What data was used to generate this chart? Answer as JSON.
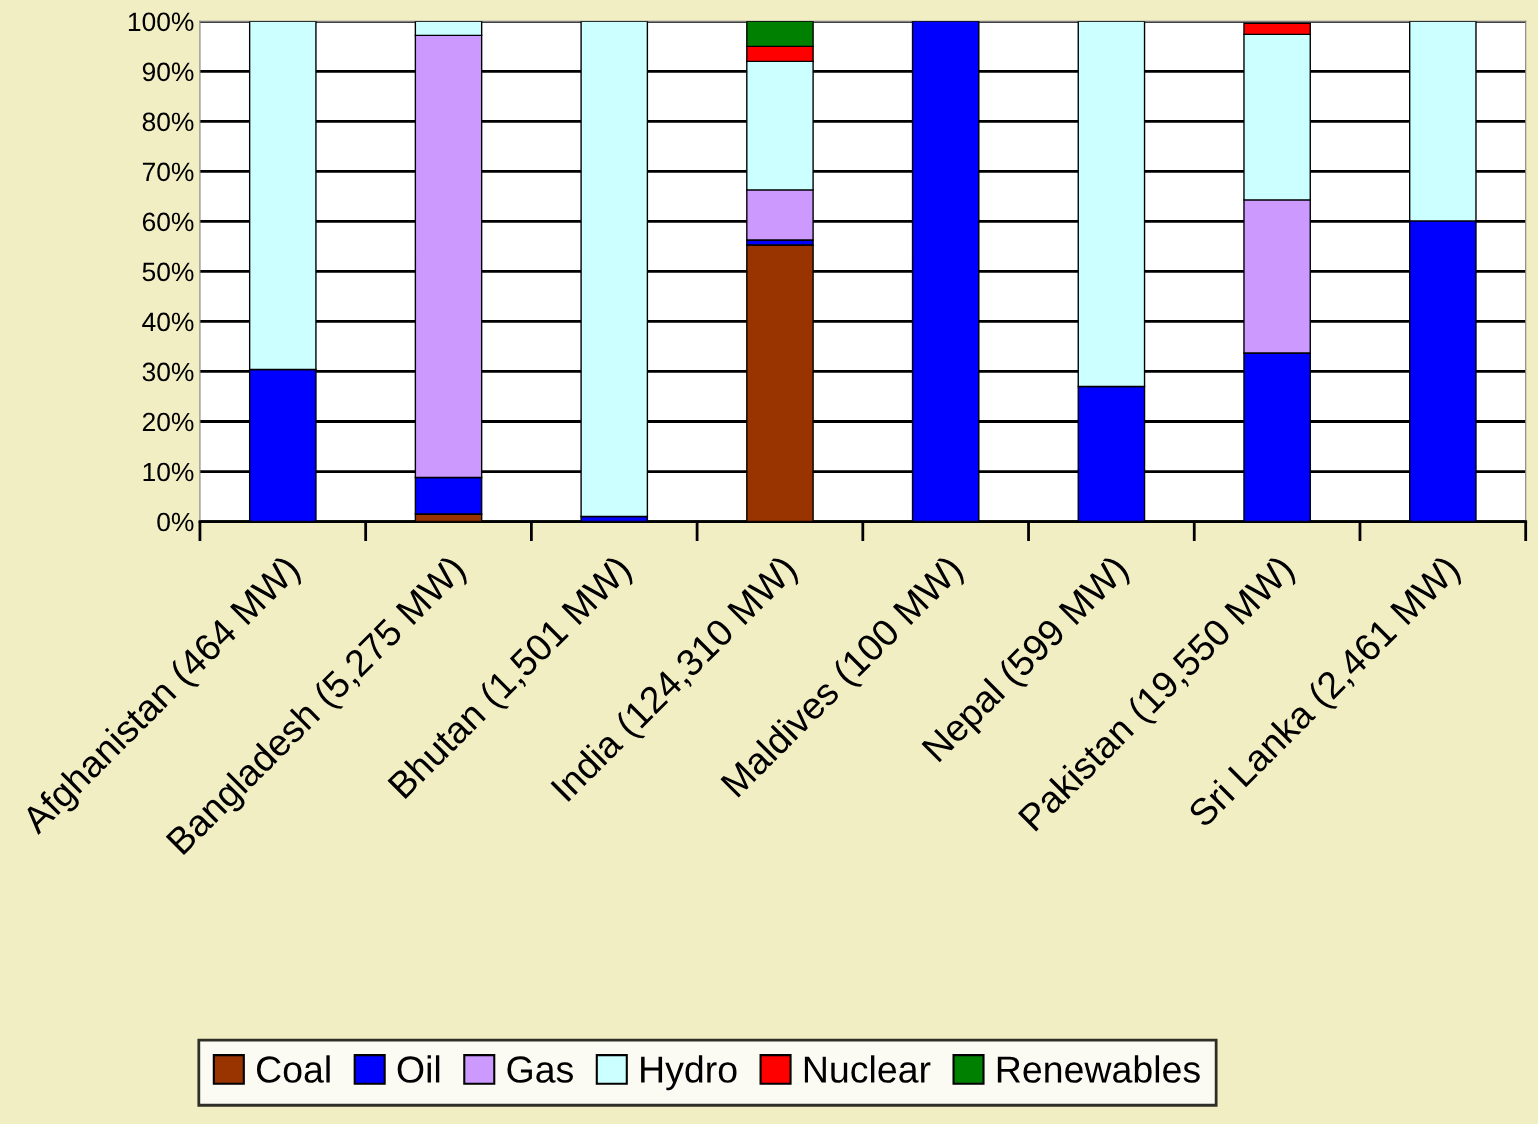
{
  "chart_data": {
    "type": "bar",
    "stacked": true,
    "categories": [
      "Afghanistan (464 MW)",
      "Bangladesh (5,275 MW)",
      "Bhutan (1,501 MW)",
      "India (124,310 MW)",
      "Maldives (100 MW)",
      "Nepal (599 MW)",
      "Pakistan (19,550 MW)",
      "Sri Lanka (2,461 MW)"
    ],
    "series": [
      {
        "name": "Coal",
        "color": "#993300",
        "values": [
          null,
          1.5,
          null,
          55.3,
          null,
          null,
          null,
          null
        ]
      },
      {
        "name": "Oil",
        "color": "#0000ff",
        "values": [
          30.4,
          7.3,
          1.0,
          1.0,
          100,
          27.0,
          33.7,
          60.1
        ]
      },
      {
        "name": "Gas",
        "color": "#cc99ff",
        "values": [
          null,
          88.4,
          null,
          10.0,
          null,
          null,
          30.6,
          null
        ]
      },
      {
        "name": "Hydro",
        "color": "#ccffff",
        "values": [
          69.6,
          2.8,
          99.0,
          25.7,
          null,
          73.0,
          33.1,
          39.9
        ]
      },
      {
        "name": "Nuclear",
        "color": "#ff0000",
        "values": [
          null,
          null,
          null,
          3.0,
          null,
          null,
          2.2,
          null
        ]
      },
      {
        "name": "Renewables",
        "color": "#008000",
        "values": [
          null,
          null,
          null,
          5.0,
          null,
          null,
          null,
          null
        ]
      }
    ],
    "ylim": [
      0,
      100
    ],
    "yticks": [
      {
        "value": 0,
        "label": "0%"
      },
      {
        "value": 10,
        "label": "10%"
      },
      {
        "value": 20,
        "label": "20%"
      },
      {
        "value": 30,
        "label": "30%"
      },
      {
        "value": 40,
        "label": "40%"
      },
      {
        "value": 50,
        "label": "50%"
      },
      {
        "value": 60,
        "label": "60%"
      },
      {
        "value": 70,
        "label": "70%"
      },
      {
        "value": 80,
        "label": "80%"
      },
      {
        "value": 90,
        "label": "90%"
      },
      {
        "value": 100,
        "label": "100%"
      }
    ],
    "grid": "y",
    "legend": "bottom"
  }
}
